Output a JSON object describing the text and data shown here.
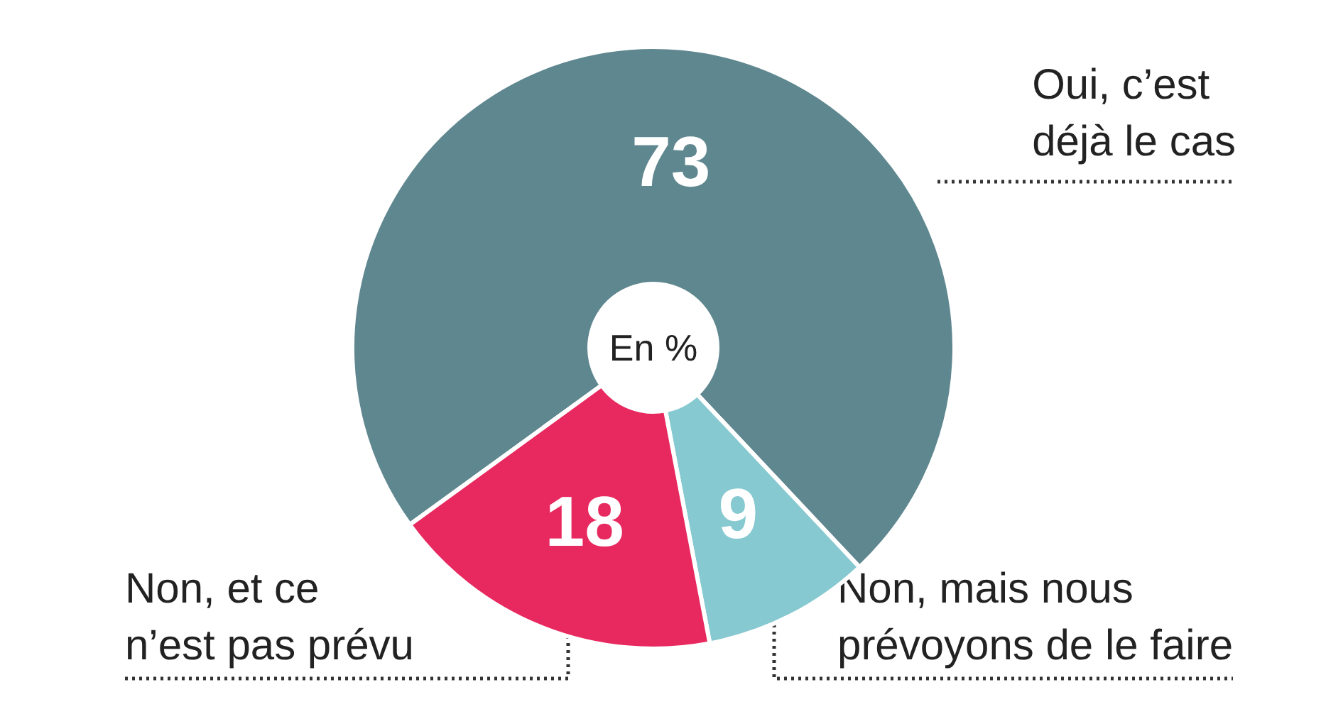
{
  "chart_data": {
    "type": "donut",
    "categories": [
      "Oui, c’est\ndéjà le cas",
      "Non, mais nous\nprévoyons de le faire",
      "Non, et ce\nn’est pas prévu"
    ],
    "values": [
      73,
      9,
      18
    ],
    "colors": [
      "#5f878f",
      "#86c9d0",
      "#e8295f"
    ],
    "data_labels": true,
    "legend": false,
    "annotations": [
      "En %"
    ]
  }
}
